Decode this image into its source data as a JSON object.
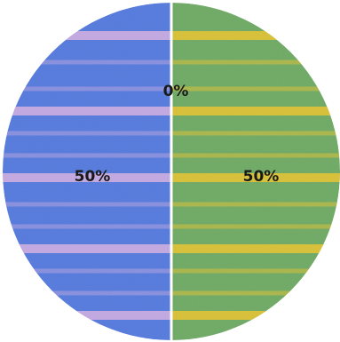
{
  "chart_data": {
    "type": "pie",
    "title": "",
    "slices": [
      {
        "value": 0,
        "label": "0%",
        "color": "#6fa8d6"
      },
      {
        "value": 50,
        "label": "50%",
        "color": "#5b7fe0"
      },
      {
        "value": 50,
        "label": "50%",
        "color": "#74ae6a"
      }
    ],
    "texture": {
      "left_stripe_color": "#e6b8e0",
      "right_stripe_color": "#f0c531"
    },
    "divider_color": "#ffffff",
    "legend": "none"
  }
}
